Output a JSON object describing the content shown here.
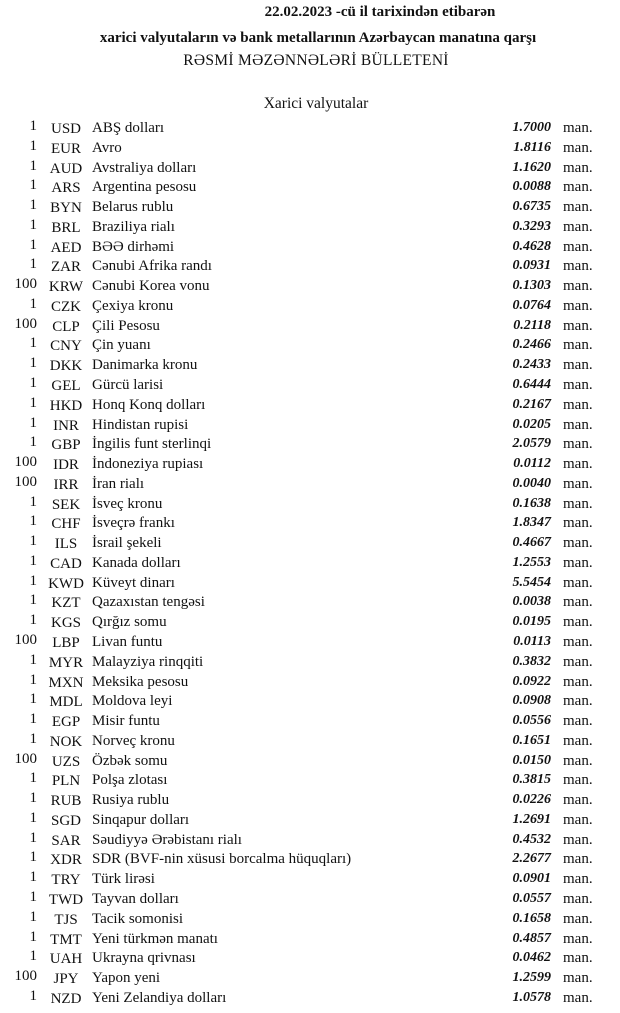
{
  "header": {
    "date_line": "22.02.2023 -cü il tarixindən etibarən",
    "subtitle": "xarici valyutaların və bank metallarının Azərbaycan manatına qarşı",
    "title": "RƏSMİ MƏZƏNNƏLƏRİ BÜLLETENİ"
  },
  "section_title": "Xarici valyutalar",
  "unit": "man.",
  "rates": [
    {
      "amount": "1",
      "code": "USD",
      "name": "ABŞ dolları",
      "value": "1.7000"
    },
    {
      "amount": "1",
      "code": "EUR",
      "name": "Avro",
      "value": "1.8116"
    },
    {
      "amount": "1",
      "code": "AUD",
      "name": "Avstraliya dolları",
      "value": "1.1620"
    },
    {
      "amount": "1",
      "code": "ARS",
      "name": "Argentina pesosu",
      "value": "0.0088"
    },
    {
      "amount": "1",
      "code": "BYN",
      "name": "Belarus rublu",
      "value": "0.6735"
    },
    {
      "amount": "1",
      "code": "BRL",
      "name": "Braziliya rialı",
      "value": "0.3293"
    },
    {
      "amount": "1",
      "code": "AED",
      "name": "BƏƏ dirhəmi",
      "value": "0.4628"
    },
    {
      "amount": "1",
      "code": "ZAR",
      "name": "Cənubi Afrika randı",
      "value": "0.0931"
    },
    {
      "amount": "100",
      "code": "KRW",
      "name": "Cənubi Korea vonu",
      "value": "0.1303"
    },
    {
      "amount": "1",
      "code": "CZK",
      "name": "Çexiya kronu",
      "value": "0.0764"
    },
    {
      "amount": "100",
      "code": "CLP",
      "name": "Çili Pesosu",
      "value": "0.2118"
    },
    {
      "amount": "1",
      "code": "CNY",
      "name": "Çin yuanı",
      "value": "0.2466"
    },
    {
      "amount": "1",
      "code": "DKK",
      "name": "Danimarka kronu",
      "value": "0.2433"
    },
    {
      "amount": "1",
      "code": "GEL",
      "name": "Gürcü larisi",
      "value": "0.6444"
    },
    {
      "amount": "1",
      "code": "HKD",
      "name": "Honq Konq dolları",
      "value": "0.2167"
    },
    {
      "amount": "1",
      "code": "INR",
      "name": "Hindistan rupisi",
      "value": "0.0205"
    },
    {
      "amount": "1",
      "code": "GBP",
      "name": "İngilis funt sterlinqi",
      "value": "2.0579"
    },
    {
      "amount": "100",
      "code": "IDR",
      "name": "İndoneziya rupiası",
      "value": "0.0112"
    },
    {
      "amount": "100",
      "code": "IRR",
      "name": "İran rialı",
      "value": "0.0040"
    },
    {
      "amount": "1",
      "code": "SEK",
      "name": "İsveç kronu",
      "value": "0.1638"
    },
    {
      "amount": "1",
      "code": "CHF",
      "name": "İsveçrə frankı",
      "value": "1.8347"
    },
    {
      "amount": "1",
      "code": "ILS",
      "name": "İsrail şekeli",
      "value": "0.4667"
    },
    {
      "amount": "1",
      "code": "CAD",
      "name": "Kanada dolları",
      "value": "1.2553"
    },
    {
      "amount": "1",
      "code": "KWD",
      "name": "Küveyt dinarı",
      "value": "5.5454"
    },
    {
      "amount": "1",
      "code": "KZT",
      "name": "Qazaxıstan tengəsi",
      "value": "0.0038"
    },
    {
      "amount": "1",
      "code": "KGS",
      "name": "Qırğız somu",
      "value": "0.0195"
    },
    {
      "amount": "100",
      "code": "LBP",
      "name": "Livan funtu",
      "value": "0.0113"
    },
    {
      "amount": "1",
      "code": "MYR",
      "name": "Malayziya rinqqiti",
      "value": "0.3832"
    },
    {
      "amount": "1",
      "code": "MXN",
      "name": "Meksika pesosu",
      "value": "0.0922"
    },
    {
      "amount": "1",
      "code": "MDL",
      "name": "Moldova leyi",
      "value": "0.0908"
    },
    {
      "amount": "1",
      "code": "EGP",
      "name": "Misir funtu",
      "value": "0.0556"
    },
    {
      "amount": "1",
      "code": "NOK",
      "name": "Norveç kronu",
      "value": "0.1651"
    },
    {
      "amount": "100",
      "code": "UZS",
      "name": "Özbək somu",
      "value": "0.0150"
    },
    {
      "amount": "1",
      "code": "PLN",
      "name": "Polşa zlotası",
      "value": "0.3815"
    },
    {
      "amount": "1",
      "code": "RUB",
      "name": "Rusiya rublu",
      "value": "0.0226"
    },
    {
      "amount": "1",
      "code": "SGD",
      "name": "Sinqapur dolları",
      "value": "1.2691"
    },
    {
      "amount": "1",
      "code": "SAR",
      "name": "Səudiyyə Ərəbistanı rialı",
      "value": "0.4532"
    },
    {
      "amount": "1",
      "code": "XDR",
      "name": "SDR (BVF-nin xüsusi borcalma hüquqları)",
      "value": "2.2677"
    },
    {
      "amount": "1",
      "code": "TRY",
      "name": "Türk lirəsi",
      "value": "0.0901"
    },
    {
      "amount": "1",
      "code": "TWD",
      "name": "Tayvan dolları",
      "value": "0.0557"
    },
    {
      "amount": "1",
      "code": "TJS",
      "name": "Tacik somonisi",
      "value": "0.1658"
    },
    {
      "amount": "1",
      "code": "TMT",
      "name": "Yeni türkmən manatı",
      "value": "0.4857"
    },
    {
      "amount": "1",
      "code": "UAH",
      "name": "Ukrayna qrivnası",
      "value": "0.0462"
    },
    {
      "amount": "100",
      "code": "JPY",
      "name": "Yapon yeni",
      "value": "1.2599"
    },
    {
      "amount": "1",
      "code": "NZD",
      "name": "Yeni Zelandiya dolları",
      "value": "1.0578"
    }
  ]
}
